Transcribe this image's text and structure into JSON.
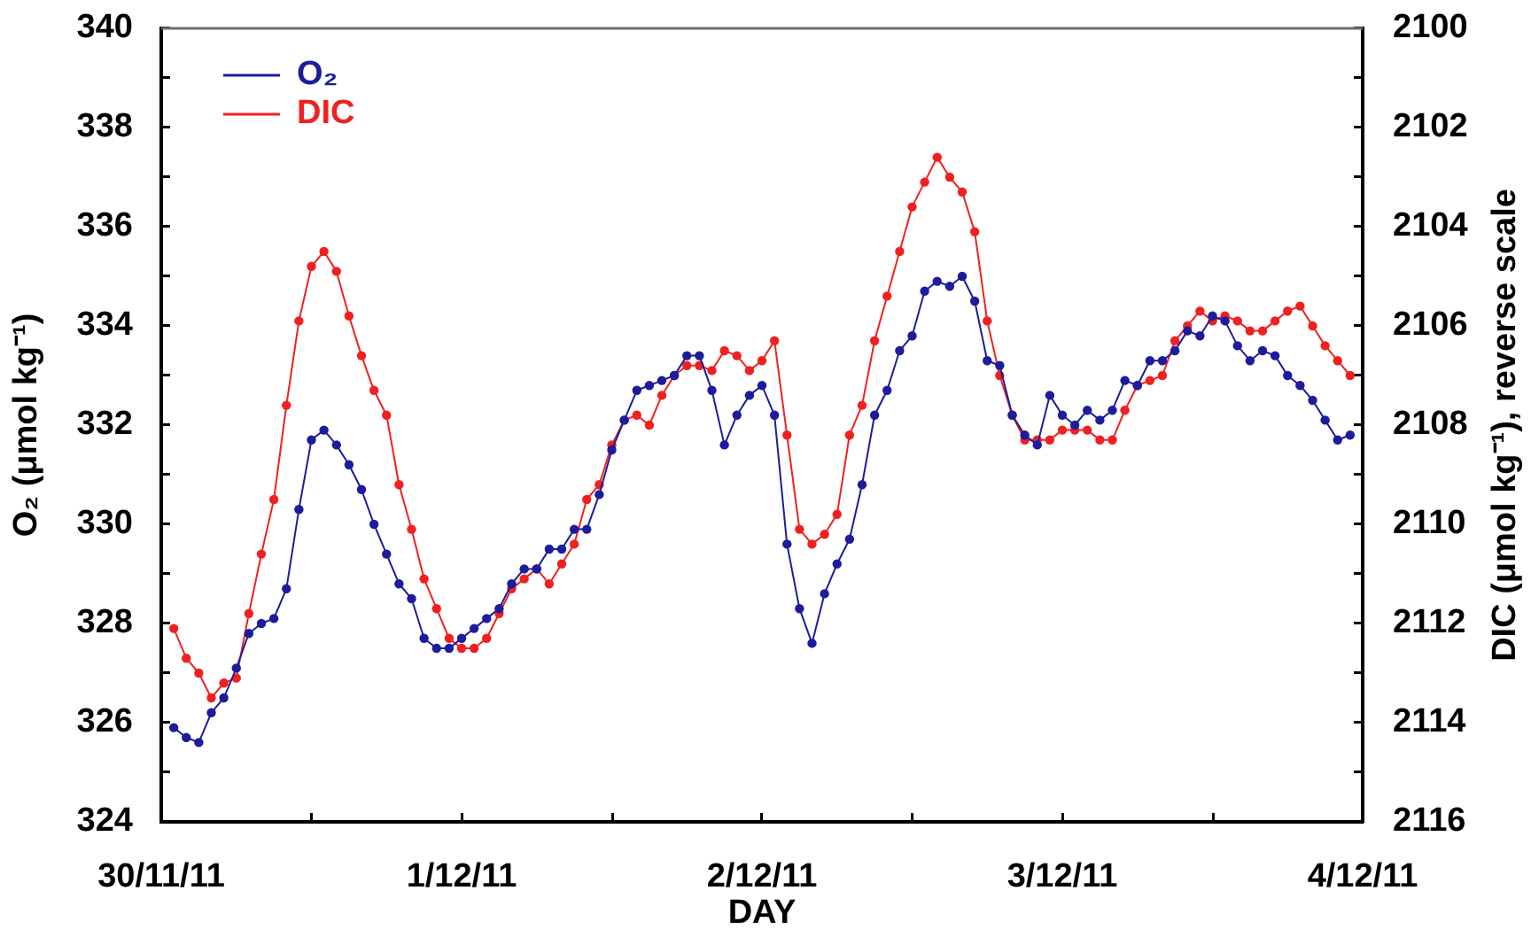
{
  "chart_data": {
    "type": "line",
    "xlabel": "DAY",
    "ylabel": "O₂ (μmol kg⁻¹)",
    "y2label": "DIC (μmol kg⁻¹), reverse scale",
    "x": [
      "--11-30T01:00",
      "--11-30T02:00",
      "--11-30T03:00",
      "--11-30T04:00",
      "--11-30T05:00",
      "--11-30T06:00",
      "--11-30T07:00",
      "--11-30T08:00",
      "--11-30T09:00",
      "--11-30T10:00",
      "--11-30T11:00",
      "--11-30T12:00",
      "--11-30T13:00",
      "--11-30T14:00",
      "--11-30T15:00",
      "--11-30T16:00",
      "--11-30T17:00",
      "--11-30T18:00",
      "--11-30T19:00",
      "--11-30T20:00",
      "--11-30T21:00",
      "--11-30T22:00",
      "--11-30T23:00",
      "--12-01T00:00",
      "--12-01T01:00",
      "--12-01T02:00",
      "--12-01T03:00",
      "--12-01T04:00",
      "--12-01T05:00",
      "--12-01T06:00",
      "--12-01T07:00",
      "--12-01T08:00",
      "--12-01T09:00",
      "--12-01T10:00",
      "--12-01T11:00",
      "--12-01T12:00",
      "--12-01T13:00",
      "--12-01T14:00",
      "--12-01T15:00",
      "--12-01T16:00",
      "--12-01T17:00",
      "--12-01T18:00",
      "--12-01T19:00",
      "--12-01T20:00",
      "--12-01T21:00",
      "--12-01T22:00",
      "--12-01T23:00",
      "--12-02T00:00",
      "--12-02T01:00",
      "--12-02T02:00",
      "--12-02T03:00",
      "--12-02T04:00",
      "--12-02T05:00",
      "--12-02T06:00",
      "--12-02T07:00",
      "--12-02T08:00",
      "--12-02T09:00",
      "--12-02T10:00",
      "--12-02T11:00",
      "--12-02T12:00",
      "--12-02T13:00",
      "--12-02T14:00",
      "--12-02T15:00",
      "--12-02T16:00",
      "--12-02T17:00",
      "--12-02T18:00",
      "--12-02T19:00",
      "--12-02T20:00",
      "--12-02T21:00",
      "--12-02T22:00",
      "--12-02T23:00",
      "--12-03T00:00",
      "--12-03T01:00",
      "--12-03T02:00",
      "--12-03T03:00",
      "--12-03T04:00",
      "--12-03T05:00",
      "--12-03T06:00",
      "--12-03T07:00",
      "--12-03T08:00",
      "--12-03T09:00",
      "--12-03T10:00",
      "--12-03T11:00",
      "--12-03T12:00",
      "--12-03T13:00",
      "--12-03T14:00",
      "--12-03T15:00",
      "--12-03T16:00",
      "--12-03T17:00",
      "--12-03T18:00",
      "--12-03T19:00",
      "--12-03T20:00",
      "--12-03T21:00",
      "--12-03T22:00",
      "--12-03T23:00"
    ],
    "series": [
      {
        "name": "O₂",
        "color": "#1c1c9c",
        "values": [
          325.9,
          325.7,
          325.6,
          326.2,
          326.5,
          327.1,
          327.8,
          328.0,
          328.1,
          328.7,
          330.3,
          331.7,
          331.9,
          331.6,
          331.2,
          330.7,
          330.0,
          329.4,
          328.8,
          328.5,
          327.7,
          327.5,
          327.5,
          327.7,
          327.9,
          328.1,
          328.3,
          328.8,
          329.1,
          329.1,
          329.5,
          329.5,
          329.9,
          329.9,
          330.6,
          331.5,
          332.1,
          332.7,
          332.8,
          332.9,
          333.0,
          333.4,
          333.4,
          332.7,
          331.6,
          332.2,
          332.6,
          332.8,
          332.2,
          329.6,
          328.3,
          327.6,
          328.6,
          329.2,
          329.7,
          330.8,
          332.2,
          332.7,
          333.5,
          333.8,
          334.7,
          334.9,
          334.8,
          335.0,
          334.5,
          333.3,
          333.2,
          332.2,
          331.8,
          331.6,
          332.6,
          332.2,
          332.0,
          332.3,
          332.1,
          332.3,
          332.9,
          332.8,
          333.3,
          333.3,
          333.5,
          333.9,
          333.8,
          334.2,
          334.1,
          333.6,
          333.3,
          333.5,
          333.4,
          333.0,
          332.8,
          332.5,
          332.1,
          331.7,
          331.8
        ]
      },
      {
        "name": "DIC",
        "color": "#f02020",
        "axis": "y2",
        "values": [
          2112.1,
          2112.7,
          2113.0,
          2113.5,
          2113.2,
          2113.1,
          2111.8,
          2110.6,
          2109.5,
          2107.6,
          2105.9,
          2104.8,
          2104.5,
          2104.9,
          2105.8,
          2106.6,
          2107.3,
          2107.8,
          2109.2,
          2110.1,
          2111.1,
          2111.7,
          2112.3,
          2112.5,
          2112.5,
          2112.3,
          2111.8,
          2111.3,
          2111.1,
          2110.9,
          2111.2,
          2110.8,
          2110.4,
          2109.5,
          2109.2,
          2108.4,
          2107.9,
          2107.8,
          2108.0,
          2107.4,
          2107.0,
          2106.8,
          2106.8,
          2106.9,
          2106.5,
          2106.6,
          2106.9,
          2106.7,
          2106.3,
          2108.2,
          2110.1,
          2110.4,
          2110.2,
          2109.8,
          2108.2,
          2107.6,
          2106.3,
          2105.4,
          2104.5,
          2103.6,
          2103.1,
          2102.6,
          2103.0,
          2103.3,
          2104.1,
          2105.9,
          2107.0,
          2107.8,
          2108.3,
          2108.3,
          2108.3,
          2108.1,
          2108.1,
          2108.1,
          2108.3,
          2108.3,
          2107.7,
          2107.2,
          2107.1,
          2107.0,
          2106.3,
          2106.0,
          2105.7,
          2105.9,
          2105.8,
          2105.9,
          2106.1,
          2106.1,
          2105.9,
          2105.7,
          2105.6,
          2106.0,
          2106.4,
          2106.7,
          2107.0
        ]
      }
    ],
    "xlim": [
      "--11-30T00:00",
      "--12-04T00:00"
    ],
    "xticks": [
      {
        "value": "--11-30T00:00",
        "label": "30/11/11"
      },
      {
        "value": "--11-30T12:00",
        "label": null
      },
      {
        "value": "--12-01T00:00",
        "label": "1/12/11"
      },
      {
        "value": "--12-01T12:00",
        "label": null
      },
      {
        "value": "--12-02T00:00",
        "label": "2/12/11"
      },
      {
        "value": "--12-02T12:00",
        "label": null
      },
      {
        "value": "--12-03T00:00",
        "label": "3/12/11"
      },
      {
        "value": "--12-03T12:00",
        "label": null
      },
      {
        "value": "--12-04T00:00",
        "label": "4/12/11"
      }
    ],
    "ylim": [
      324,
      340
    ],
    "yticks": [
      324,
      {
        "value": 325,
        "label": null
      },
      326,
      {
        "value": 327,
        "label": null
      },
      328,
      {
        "value": 329,
        "label": null
      },
      330,
      {
        "value": 331,
        "label": null
      },
      332,
      {
        "value": 333,
        "label": null
      },
      334,
      {
        "value": 335,
        "label": null
      },
      336,
      {
        "value": 337,
        "label": null
      },
      338,
      {
        "value": 339,
        "label": null
      },
      340
    ],
    "y2lim": [
      2116,
      2100
    ],
    "y2ticks": [
      2116,
      {
        "value": 2115,
        "label": null
      },
      2114,
      {
        "value": 2113,
        "label": null
      },
      2112,
      {
        "value": 2111,
        "label": null
      },
      2110,
      {
        "value": 2109,
        "label": null
      },
      2108,
      {
        "value": 2107,
        "label": null
      },
      2106,
      {
        "value": 2105,
        "label": null
      },
      2104,
      {
        "value": 2103,
        "label": null
      },
      2102,
      {
        "value": 2101,
        "label": null
      },
      2100
    ],
    "legend": "top left",
    "marker": "circle",
    "line_style": "solid"
  }
}
